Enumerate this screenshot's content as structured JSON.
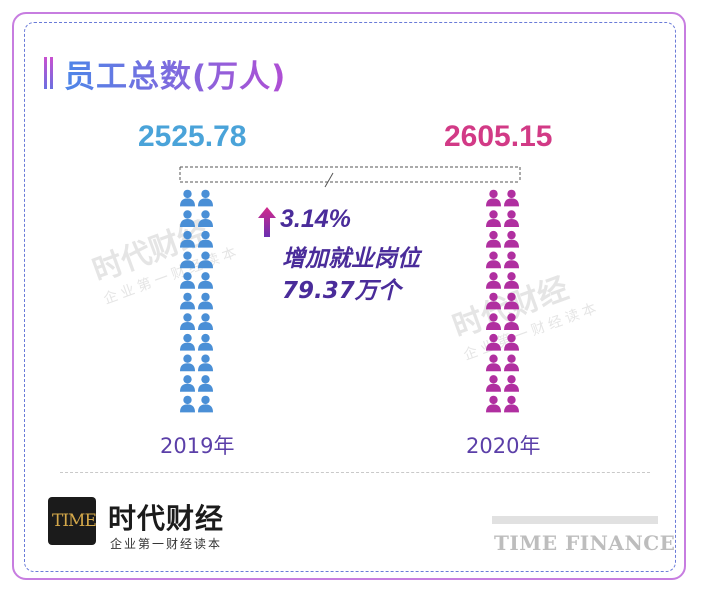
{
  "title": "员工总数(万人)",
  "chart_data": {
    "type": "pictogram",
    "categories": [
      "2019年",
      "2020年"
    ],
    "values": [
      "2525.78",
      "2605.15"
    ],
    "colors": [
      "#4a8fd6",
      "#b02fa0"
    ],
    "annotation": {
      "icon": "up-arrow-icon",
      "percent": "3.14%",
      "line2": "增加就业岗位",
      "line3": "79.37万个"
    }
  },
  "watermark": {
    "brand": "时代财经",
    "tagline": "企业第一财经读本"
  },
  "footer": {
    "logo_text": "TIME",
    "brand": "时代财经",
    "tagline": "企业第一财经读本",
    "english": "TIME FINANCE"
  }
}
